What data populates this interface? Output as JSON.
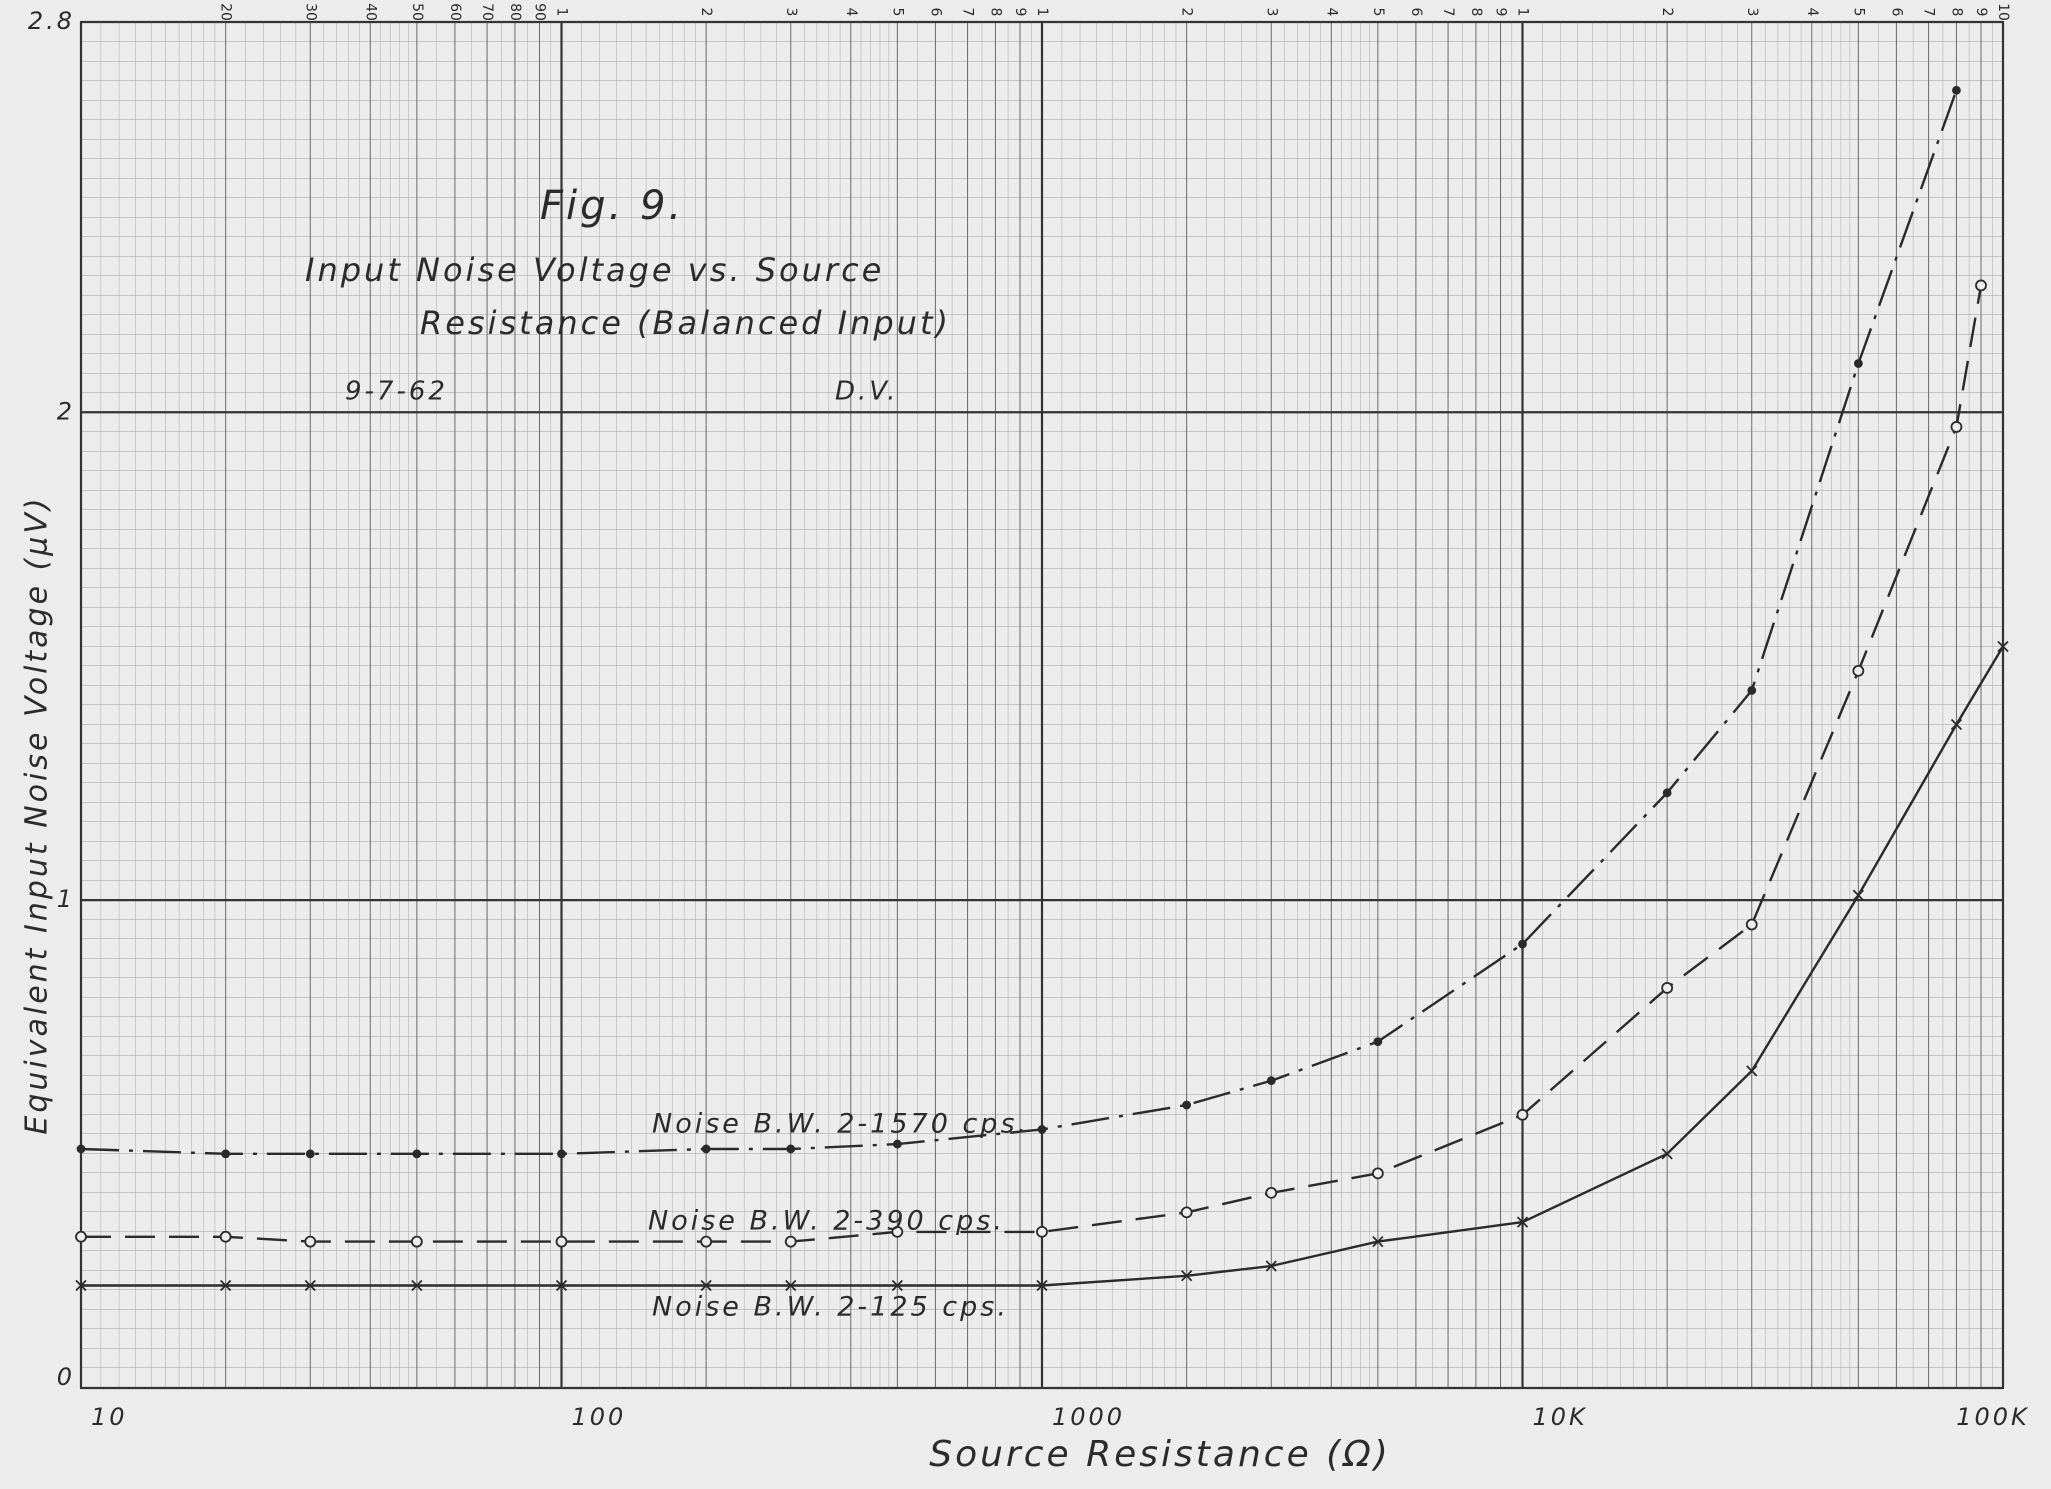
{
  "chart_data": {
    "type": "line",
    "figure_label": "Fig. 9.",
    "title": [
      "Input Noise Voltage vs. Source",
      "Resistance (Balanced Input)"
    ],
    "date": "9-7-62",
    "author": "D.V.",
    "x_label": "Source Resistance (Ω)",
    "y_label": "Equivalent Input Noise Voltage (μV)",
    "x_log": true,
    "grid": true,
    "xlim": [
      10,
      100000
    ],
    "ylim": [
      0,
      2.8
    ],
    "xticks": [
      10,
      100,
      1000,
      {
        "value": 10000,
        "label": "10K"
      },
      {
        "value": 100000,
        "label": "100K"
      }
    ],
    "yticks": [
      0,
      1,
      2,
      2.8
    ],
    "x2ticks": [
      20,
      30,
      40,
      50,
      60,
      70,
      80,
      90,
      {
        "value": 100,
        "label": "1"
      },
      {
        "value": 200,
        "label": "2"
      },
      {
        "value": 300,
        "label": "3"
      },
      {
        "value": 400,
        "label": "4"
      },
      {
        "value": 500,
        "label": "5"
      },
      {
        "value": 600,
        "label": "6"
      },
      {
        "value": 700,
        "label": "7"
      },
      {
        "value": 800,
        "label": "8"
      },
      {
        "value": 900,
        "label": "9"
      },
      {
        "value": 1000,
        "label": "1"
      },
      {
        "value": 2000,
        "label": "2"
      },
      {
        "value": 3000,
        "label": "3"
      },
      {
        "value": 4000,
        "label": "4"
      },
      {
        "value": 5000,
        "label": "5"
      },
      {
        "value": 6000,
        "label": "6"
      },
      {
        "value": 7000,
        "label": "7"
      },
      {
        "value": 8000,
        "label": "8"
      },
      {
        "value": 9000,
        "label": "9"
      },
      {
        "value": 10000,
        "label": "1"
      },
      {
        "value": 20000,
        "label": "2"
      },
      {
        "value": 30000,
        "label": "3"
      },
      {
        "value": 40000,
        "label": "4"
      },
      {
        "value": 50000,
        "label": "5"
      },
      {
        "value": 60000,
        "label": "6"
      },
      {
        "value": 70000,
        "label": "7"
      },
      {
        "value": 80000,
        "label": "8"
      },
      {
        "value": 90000,
        "label": "9"
      },
      {
        "value": 100000,
        "label": "10"
      }
    ],
    "series": [
      {
        "name": "Noise B.W. 2-1570 cps.",
        "color": "#2a2a2a",
        "style": "dashdot",
        "marker": "dot",
        "x": [
          10,
          20,
          30,
          50,
          100,
          200,
          300,
          500,
          1000,
          2000,
          3000,
          5000,
          10000,
          20000,
          30000,
          50000,
          80000
        ],
        "values": [
          0.49,
          0.48,
          0.48,
          0.48,
          0.48,
          0.49,
          0.49,
          0.5,
          0.53,
          0.58,
          0.63,
          0.71,
          0.91,
          1.22,
          1.43,
          2.1,
          2.66
        ]
      },
      {
        "name": "Noise B.W. 2-390 cps.",
        "color": "#2a2a2a",
        "style": "dashed",
        "marker": "circle",
        "x": [
          10,
          20,
          30,
          50,
          100,
          200,
          300,
          500,
          1000,
          2000,
          3000,
          5000,
          10000,
          20000,
          30000,
          50000,
          80000,
          90000
        ],
        "values": [
          0.31,
          0.31,
          0.3,
          0.3,
          0.3,
          0.3,
          0.3,
          0.32,
          0.32,
          0.36,
          0.4,
          0.44,
          0.56,
          0.82,
          0.95,
          1.47,
          1.97,
          2.26
        ]
      },
      {
        "name": "Noise B.W. 2-125 cps.",
        "color": "#2a2a2a",
        "style": "solid",
        "marker": "x",
        "x": [
          10,
          20,
          30,
          50,
          100,
          200,
          300,
          500,
          1000,
          2000,
          3000,
          5000,
          10000,
          20000,
          30000,
          50000,
          80000,
          100000
        ],
        "values": [
          0.21,
          0.21,
          0.21,
          0.21,
          0.21,
          0.21,
          0.21,
          0.21,
          0.21,
          0.23,
          0.25,
          0.3,
          0.34,
          0.48,
          0.65,
          1.01,
          1.36,
          1.52
        ]
      }
    ]
  }
}
